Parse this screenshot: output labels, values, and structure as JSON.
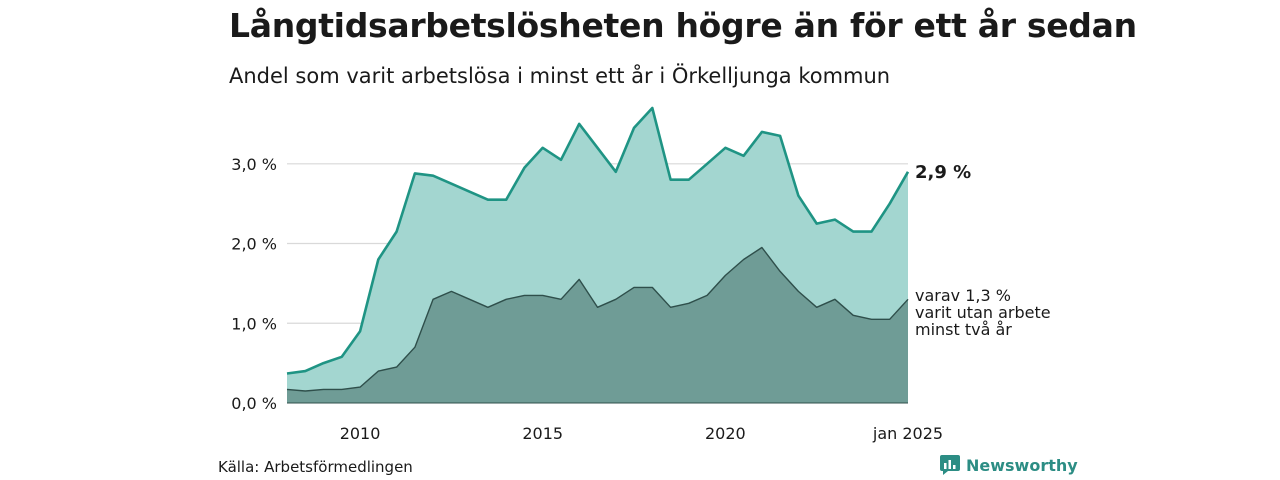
{
  "title": "Långtidsarbetslösheten högre än för ett år sedan",
  "subtitle": "Andel som varit arbetslösa i minst ett år i Örkelljunga kommun",
  "source": "Källa: Arbetsförmedlingen",
  "brand": "Newsworthy",
  "colors": {
    "total_line": "#1f9484",
    "total_fill": "#a3d6d0",
    "two_year_line": "#2f4f4b",
    "two_year_fill": "#6f9c96",
    "grid": "#d9d9d9",
    "brand": "#2c8d84"
  },
  "chart_data": {
    "type": "area",
    "x_start": "2008-01",
    "x_end": "2025-01",
    "ylim": [
      0,
      3.8
    ],
    "yticks": [
      {
        "value": 0,
        "label": "0,0 %"
      },
      {
        "value": 1,
        "label": "1,0 %"
      },
      {
        "value": 2,
        "label": "2,0 %"
      },
      {
        "value": 3,
        "label": "3,0 %"
      }
    ],
    "xticks": [
      {
        "year": 2010,
        "label": "2010"
      },
      {
        "year": 2015,
        "label": "2015"
      },
      {
        "year": 2020,
        "label": "2020"
      },
      {
        "year": 2025,
        "label": "jan 2025"
      }
    ],
    "grid": "horizontal",
    "annotations": {
      "total_last": "2,9 %",
      "two_year_lines": [
        "varav 1,3 %",
        "varit utan arbete",
        "minst två år"
      ]
    },
    "series": [
      {
        "key": "total",
        "points": [
          [
            "2008-01",
            0.37
          ],
          [
            "2008-07",
            0.4
          ],
          [
            "2009-01",
            0.5
          ],
          [
            "2009-07",
            0.58
          ],
          [
            "2010-01",
            0.9
          ],
          [
            "2010-07",
            1.8
          ],
          [
            "2011-01",
            2.15
          ],
          [
            "2011-07",
            2.88
          ],
          [
            "2012-01",
            2.85
          ],
          [
            "2012-07",
            2.75
          ],
          [
            "2013-01",
            2.65
          ],
          [
            "2013-07",
            2.55
          ],
          [
            "2014-01",
            2.55
          ],
          [
            "2014-07",
            2.95
          ],
          [
            "2015-01",
            3.2
          ],
          [
            "2015-07",
            3.05
          ],
          [
            "2016-01",
            3.5
          ],
          [
            "2016-07",
            3.2
          ],
          [
            "2017-01",
            2.9
          ],
          [
            "2017-07",
            3.45
          ],
          [
            "2018-01",
            3.7
          ],
          [
            "2018-07",
            2.8
          ],
          [
            "2019-01",
            2.8
          ],
          [
            "2019-07",
            3.0
          ],
          [
            "2020-01",
            3.2
          ],
          [
            "2020-07",
            3.1
          ],
          [
            "2021-01",
            3.4
          ],
          [
            "2021-07",
            3.35
          ],
          [
            "2022-01",
            2.6
          ],
          [
            "2022-07",
            2.25
          ],
          [
            "2023-01",
            2.3
          ],
          [
            "2023-07",
            2.15
          ],
          [
            "2024-01",
            2.15
          ],
          [
            "2024-07",
            2.5
          ],
          [
            "2025-01",
            2.9
          ]
        ]
      },
      {
        "key": "two_year",
        "points": [
          [
            "2008-01",
            0.17
          ],
          [
            "2008-07",
            0.15
          ],
          [
            "2009-01",
            0.17
          ],
          [
            "2009-07",
            0.17
          ],
          [
            "2010-01",
            0.2
          ],
          [
            "2010-07",
            0.4
          ],
          [
            "2011-01",
            0.45
          ],
          [
            "2011-07",
            0.7
          ],
          [
            "2012-01",
            1.3
          ],
          [
            "2012-07",
            1.4
          ],
          [
            "2013-01",
            1.3
          ],
          [
            "2013-07",
            1.2
          ],
          [
            "2014-01",
            1.3
          ],
          [
            "2014-07",
            1.35
          ],
          [
            "2015-01",
            1.35
          ],
          [
            "2015-07",
            1.3
          ],
          [
            "2016-01",
            1.55
          ],
          [
            "2016-07",
            1.2
          ],
          [
            "2017-01",
            1.3
          ],
          [
            "2017-07",
            1.45
          ],
          [
            "2018-01",
            1.45
          ],
          [
            "2018-07",
            1.2
          ],
          [
            "2019-01",
            1.25
          ],
          [
            "2019-07",
            1.35
          ],
          [
            "2020-01",
            1.6
          ],
          [
            "2020-07",
            1.8
          ],
          [
            "2021-01",
            1.95
          ],
          [
            "2021-07",
            1.65
          ],
          [
            "2022-01",
            1.4
          ],
          [
            "2022-07",
            1.2
          ],
          [
            "2023-01",
            1.3
          ],
          [
            "2023-07",
            1.1
          ],
          [
            "2024-01",
            1.05
          ],
          [
            "2024-07",
            1.05
          ],
          [
            "2025-01",
            1.3
          ]
        ]
      }
    ]
  }
}
